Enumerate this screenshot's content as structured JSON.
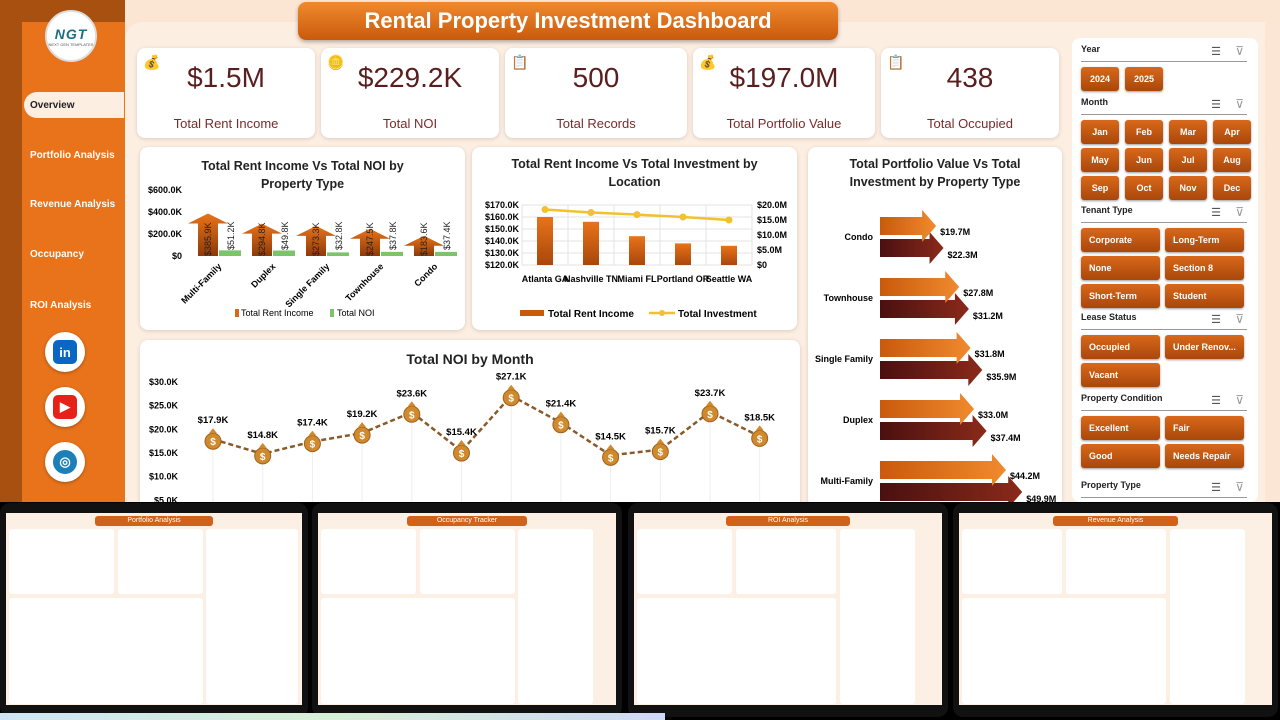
{
  "title": "Rental Property Investment Dashboard",
  "logo": {
    "text": "NGT",
    "tagline": "NEXT GEN TEMPLATES"
  },
  "sidebar": {
    "items": [
      {
        "label": "Overview",
        "active": true
      },
      {
        "label": "Portfolio Analysis"
      },
      {
        "label": "Revenue Analysis"
      },
      {
        "label": "Occupancy"
      },
      {
        "label": "ROI Analysis"
      }
    ],
    "social": [
      {
        "name": "linkedin",
        "glyph": "in",
        "color": "#0A66C2"
      },
      {
        "name": "youtube",
        "glyph": "▶",
        "color": "#E62117"
      },
      {
        "name": "website",
        "glyph": "◎",
        "color": "#1C7FB8"
      }
    ]
  },
  "kpis": [
    {
      "value": "$1.5M",
      "label": "Total Rent Income",
      "icon": "money-bag-icon"
    },
    {
      "value": "$229.2K",
      "label": "Total NOI",
      "icon": "coins-icon"
    },
    {
      "value": "500",
      "label": "Total Records",
      "icon": "document-icon"
    },
    {
      "value": "$197.0M",
      "label": "Total Portfolio Value",
      "icon": "money-bag-icon"
    },
    {
      "value": "438",
      "label": "Total Occupied",
      "icon": "clipboard-icon"
    }
  ],
  "colors": {
    "accent": "#E8731A",
    "dark": "#5A1E1E",
    "noi": "#7CC46A",
    "investment": "#F2C12E"
  },
  "chart_data": [
    {
      "type": "bar",
      "title": "Total Rent Income Vs Total NOI by Property Type",
      "categories": [
        "Multi-Family",
        "Duplex",
        "Single Family",
        "Townhouse",
        "Condo"
      ],
      "series": [
        {
          "name": "Total Rent Income",
          "values": [
            385.9,
            294.8,
            273.3,
            247.5,
            183.6
          ],
          "labels": [
            "$385.9K",
            "$294.8K",
            "$273.3K",
            "$247.5K",
            "$183.6K"
          ]
        },
        {
          "name": "Total NOI",
          "values": [
            51.2,
            49.8,
            32.8,
            37.8,
            37.4
          ],
          "labels": [
            "$51.2K",
            "$49.8K",
            "$32.8K",
            "$37.8K",
            "$37.4K"
          ]
        }
      ],
      "yticks": [
        "$0",
        "$200.0K",
        "$400.0K",
        "$600.0K"
      ],
      "ylim": [
        0,
        600
      ],
      "legend": "bottom"
    },
    {
      "type": "bar+line",
      "title": "Total Rent Income Vs Total Investment by Location",
      "categories": [
        "Atlanta GA",
        "Nashville TN",
        "Miami FL",
        "Portland OR",
        "Seattle WA"
      ],
      "series": [
        {
          "name": "Total Rent Income",
          "values": [
            160,
            156,
            144,
            138,
            136
          ],
          "axis": "left"
        },
        {
          "name": "Total Investment",
          "values": [
            18.5,
            17.5,
            16.8,
            16.0,
            15.0
          ],
          "axis": "right"
        }
      ],
      "yticks": [
        "$120.0K",
        "$130.0K",
        "$140.0K",
        "$150.0K",
        "$160.0K",
        "$170.0K"
      ],
      "ylim": [
        120,
        170
      ],
      "y2ticks": [
        "$0",
        "$5.0M",
        "$10.0M",
        "$15.0M",
        "$20.0M"
      ],
      "y2lim": [
        0,
        20
      ],
      "grid": true,
      "legend": "bottom"
    },
    {
      "type": "horizontal-bar",
      "title": "Total Portfolio Value Vs Total Investment by Property Type",
      "categories": [
        "Condo",
        "Townhouse",
        "Single Family",
        "Duplex",
        "Multi-Family"
      ],
      "series": [
        {
          "values": [
            19.7,
            27.8,
            31.8,
            33.0,
            44.2
          ],
          "labels": [
            "$19.7M",
            "$27.8M",
            "$31.8M",
            "$33.0M",
            "$44.2M"
          ]
        },
        {
          "values": [
            22.3,
            31.2,
            35.9,
            37.4,
            49.9
          ],
          "labels": [
            "$22.3M",
            "$31.2M",
            "$35.9M",
            "$37.4M",
            "$49.9M"
          ]
        }
      ]
    },
    {
      "type": "line",
      "title": "Total NOI by Month",
      "values": [
        17.9,
        14.8,
        17.4,
        19.2,
        23.6,
        15.4,
        27.1,
        21.4,
        14.5,
        15.7,
        23.7,
        18.5
      ],
      "labels": [
        "$17.9K",
        "$14.8K",
        "$17.4K",
        "$19.2K",
        "$23.6K",
        "$15.4K",
        "$27.1K",
        "$21.4K",
        "$14.5K",
        "$15.7K",
        "$23.7K",
        "$18.5K"
      ],
      "yticks": [
        "$5.0K",
        "$10.0K",
        "$15.0K",
        "$20.0K",
        "$25.0K",
        "$30.0K"
      ],
      "ylim": [
        5,
        30
      ]
    }
  ],
  "slicers": [
    {
      "title": "Year",
      "items": [
        "2024",
        "2025"
      ]
    },
    {
      "title": "Month",
      "items": [
        "Jan",
        "Feb",
        "Mar",
        "Apr",
        "May",
        "Jun",
        "Jul",
        "Aug",
        "Sep",
        "Oct",
        "Nov",
        "Dec"
      ]
    },
    {
      "title": "Tenant Type",
      "items": [
        "Corporate",
        "Long-Term",
        "None",
        "Section 8",
        "Short-Term",
        "Student"
      ]
    },
    {
      "title": "Lease Status",
      "items": [
        "Occupied",
        "Under Renov...",
        "Vacant"
      ]
    },
    {
      "title": "Property Condition",
      "items": [
        "Excellent",
        "Fair",
        "Good",
        "Needs Repair"
      ]
    },
    {
      "title": "Property Type",
      "items": []
    }
  ],
  "thumbnails": [
    {
      "title": "Portfolio Analysis"
    },
    {
      "title": "Occupancy Tracker"
    },
    {
      "title": "ROI Analysis"
    },
    {
      "title": "Revenue Analysis"
    }
  ]
}
